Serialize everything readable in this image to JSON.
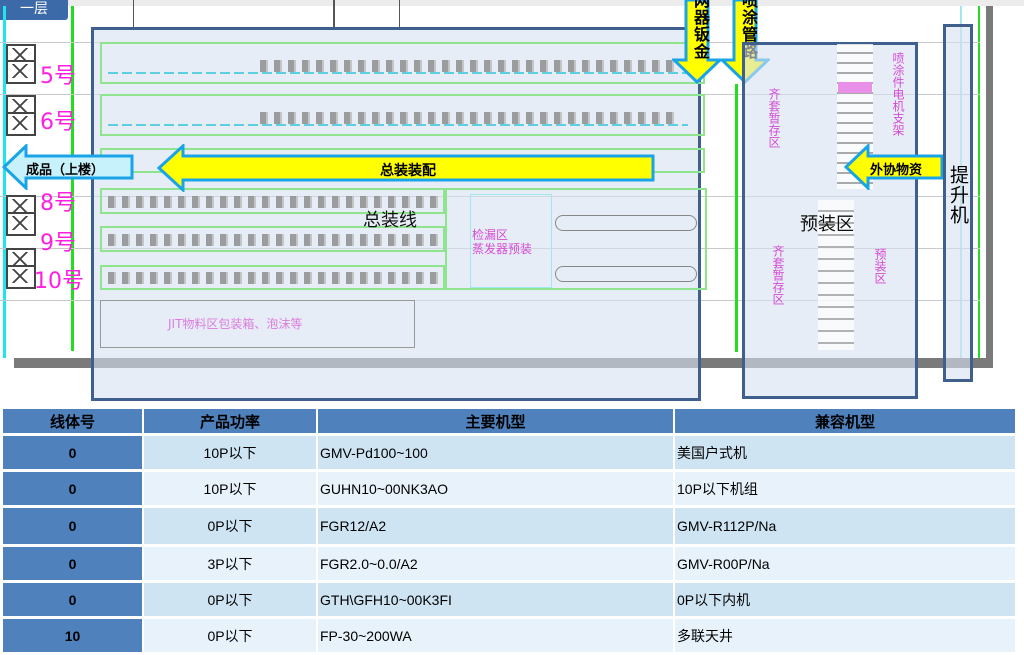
{
  "floor_tab": "一层",
  "layout": {
    "line_labels": [
      "5号",
      "6号",
      "8号",
      "9号",
      "10号"
    ],
    "arrows": {
      "finished_goods": "成品（上楼）",
      "final_assembly": "总装装配",
      "outsourced_materials": "外协物资",
      "sheet_metal": "网器钣金",
      "spray_piping": "喷涂管路"
    },
    "zones": {
      "assembly_line": "总装线",
      "pre_assembly": "预装区",
      "elevator": "提升机",
      "jit_area": "JIT物料区包装箱、泡沫等",
      "leak_check": "检漏区",
      "evaporator_pre": "蒸发器预装",
      "pre_area_1": "齐套暂存区",
      "pre_area_2": "齐套暂存区",
      "motor_area": "电机支架",
      "spray_area": "喷涂件",
      "assembly_prep": "预装区"
    },
    "colors": {
      "overlay_border": "#3f5f8f",
      "arrow_fill": "#ffff00",
      "arrow_border": "#1aa4e8",
      "line_label": "#ff1fe0",
      "table_header": "#4f81bd"
    }
  },
  "table": {
    "headers": [
      "线体号",
      "产品功率",
      "主要机型",
      "兼容机型"
    ],
    "rows": [
      [
        "0",
        "10P以下",
        "GMV-Pd100~100",
        "美国户式机"
      ],
      [
        "0",
        "10P以下",
        "GUHN10~00NK3AO",
        "10P以下机组"
      ],
      [
        "0",
        "0P以下",
        "FGR12/A2",
        "GMV-R112P/Na"
      ],
      [
        "0",
        "3P以下",
        "FGR2.0~0.0/A2",
        "GMV-R00P/Na"
      ],
      [
        "0",
        "0P以下",
        "GTH\\GFH10~00K3FI",
        "0P以下内机"
      ],
      [
        "10",
        "0P以下",
        "FP-30~200WA",
        " 多联天井"
      ]
    ]
  }
}
